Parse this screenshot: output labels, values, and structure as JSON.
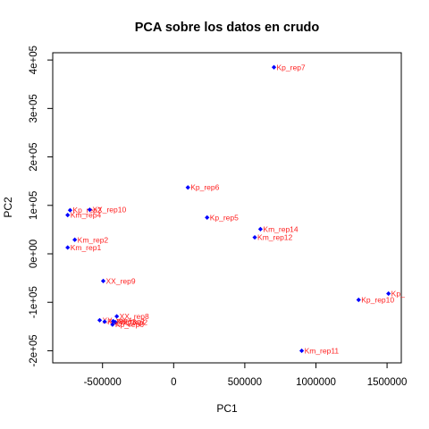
{
  "chart_data": {
    "type": "scatter",
    "title": "PCA sobre los datos en crudo",
    "xlabel": "PC1",
    "ylabel": "PC2",
    "xlim": [
      -850000,
      1600000
    ],
    "ylim": [
      -225000,
      415000
    ],
    "x_ticks": [
      {
        "value": -500000,
        "label": "-500000"
      },
      {
        "value": 0,
        "label": "0"
      },
      {
        "value": 500000,
        "label": "500000"
      },
      {
        "value": 1000000,
        "label": "1000000"
      },
      {
        "value": 1500000,
        "label": "1500000"
      }
    ],
    "y_ticks": [
      {
        "value": -200000,
        "label": "-2e+05"
      },
      {
        "value": -100000,
        "label": "-1e+05"
      },
      {
        "value": 0,
        "label": "0e+00"
      },
      {
        "value": 100000,
        "label": "1e+05"
      },
      {
        "value": 200000,
        "label": "2e+05"
      },
      {
        "value": 300000,
        "label": "3e+05"
      },
      {
        "value": 400000,
        "label": "4e+05"
      }
    ],
    "grid": false,
    "marker_color": "#0000ff",
    "label_color": "#ff2222",
    "points": [
      {
        "label": "Kp_rep7",
        "x": 705000,
        "y": 385000
      },
      {
        "label": "Kp_rep6",
        "x": 100000,
        "y": 137000
      },
      {
        "label": "Kp_rep5",
        "x": 235000,
        "y": 75000
      },
      {
        "label": "Km_rep14",
        "x": 610000,
        "y": 51000
      },
      {
        "label": "Km_rep12",
        "x": 570000,
        "y": 34000
      },
      {
        "label": "Kp_rep2",
        "x": -728000,
        "y": 90000
      },
      {
        "label": "XX_rep10",
        "x": -590000,
        "y": 91000
      },
      {
        "label": "Km_rep4",
        "x": -745000,
        "y": 80000
      },
      {
        "label": "Km_rep2",
        "x": -695000,
        "y": 29000
      },
      {
        "label": "Km_rep1",
        "x": -745000,
        "y": 13000
      },
      {
        "label": "XX_rep9",
        "x": -495000,
        "y": -56000
      },
      {
        "label": "XX_rep8",
        "x": -400000,
        "y": -129000
      },
      {
        "label": "XX_rep4",
        "x": -520000,
        "y": -137000
      },
      {
        "label": "Kp_rep3",
        "x": -485000,
        "y": -140000
      },
      {
        "label": "XX_rep1",
        "x": -425000,
        "y": -139000
      },
      {
        "label": "XX_rep2",
        "x": -410000,
        "y": -141000
      },
      {
        "label": "Kp_rep6",
        "x": -430000,
        "y": -146000
      },
      {
        "label": "Kp_rep10",
        "x": 1300000,
        "y": -95000
      },
      {
        "label": "Kp_",
        "x": 1510000,
        "y": -82000
      },
      {
        "label": "Km_rep11",
        "x": 900000,
        "y": -200000
      }
    ]
  }
}
